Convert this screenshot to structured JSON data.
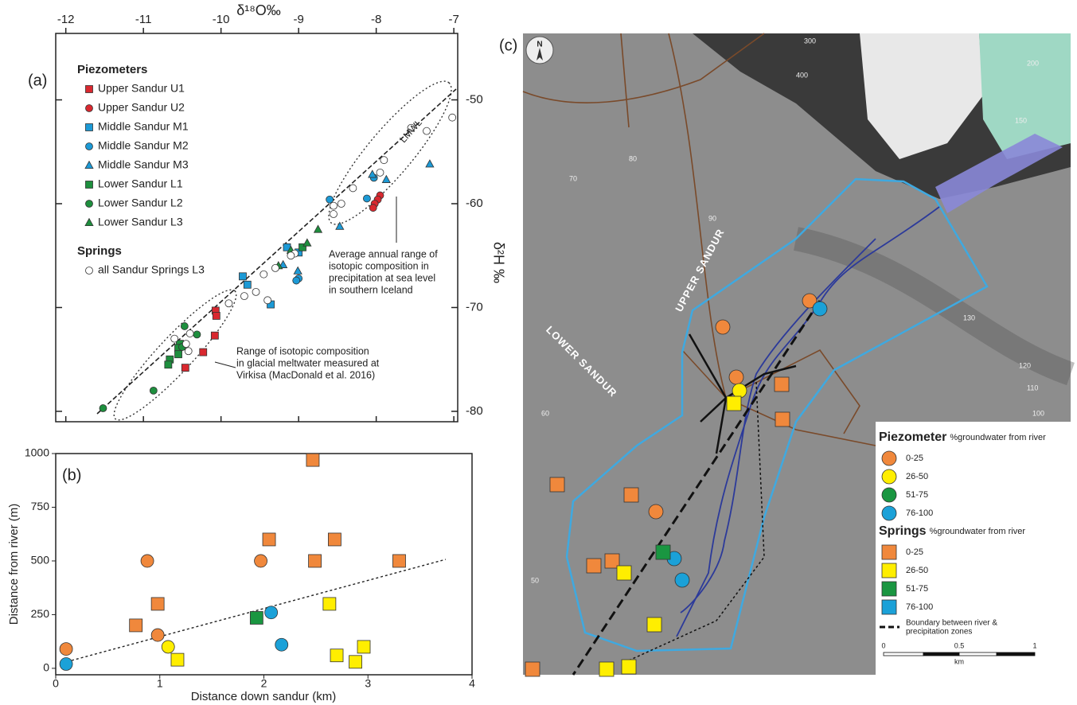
{
  "chart_data": [
    {
      "type": "scatter",
      "panel": "(a)",
      "xlabel": "δ¹⁸O‰",
      "ylabel": "δ²H ‰",
      "xlim": [
        -12.13,
        -6.95
      ],
      "ylim": [
        -81,
        -43.6
      ],
      "xticks": [
        -12,
        -11,
        -10,
        -9,
        -8,
        -7
      ],
      "yticks": [
        -50,
        -60,
        -70,
        -80
      ],
      "legend_groups": [
        "Piezometers",
        "Springs"
      ],
      "line_label": "LMWL",
      "annotations": [
        [
          "Average annual range of",
          "isotopic composition in",
          "precipitation at sea level",
          "in southern Iceland"
        ],
        [
          "Range of isotopic composition",
          "in glacial meltwater measured at",
          "Virkisa (MacDonald et al. 2016)"
        ]
      ],
      "series": [
        {
          "name": "Upper Sandur U1",
          "group": 0,
          "marker": "square",
          "color": "#d9282f",
          "x": [
            -10.07,
            -10.06,
            -10.08,
            -10.23,
            -10.46
          ],
          "y": [
            -70.3,
            -70.8,
            -72.7,
            -74.3,
            -75.8
          ]
        },
        {
          "name": "Upper Sandur U2",
          "group": 0,
          "marker": "circle",
          "color": "#d9282f",
          "x": [
            -7.95,
            -7.98,
            -8.02,
            -8.04
          ],
          "y": [
            -59.2,
            -59.6,
            -60.0,
            -60.4
          ]
        },
        {
          "name": "Middle Sandur M1",
          "group": 0,
          "marker": "square",
          "color": "#1c9ad6",
          "x": [
            -9.15,
            -9.0,
            -9.36,
            -9.66,
            -9.72
          ],
          "y": [
            -64.2,
            -64.7,
            -69.7,
            -67.8,
            -67.0
          ]
        },
        {
          "name": "Middle Sandur M2",
          "group": 0,
          "marker": "circle",
          "color": "#1c9ad6",
          "x": [
            -8.6,
            -8.12,
            -8.03,
            -9.0,
            -9.03
          ],
          "y": [
            -59.6,
            -59.5,
            -57.5,
            -67.2,
            -67.4
          ]
        },
        {
          "name": "Middle Sandur M3",
          "group": 0,
          "marker": "triangle",
          "color": "#1c9ad6",
          "x": [
            -7.31,
            -7.87,
            -8.47,
            -9.01,
            -9.2,
            -8.05
          ],
          "y": [
            -56.2,
            -57.7,
            -62.2,
            -66.5,
            -65.9,
            -57.2
          ]
        },
        {
          "name": "Lower Sandur L1",
          "group": 0,
          "marker": "square",
          "color": "#1e8f3e",
          "x": [
            -10.53,
            -10.55,
            -10.55,
            -10.66,
            -10.68,
            -8.95
          ],
          "y": [
            -73.5,
            -73.9,
            -74.5,
            -75.0,
            -75.5,
            -64.2
          ]
        },
        {
          "name": "Lower Sandur L2",
          "group": 0,
          "marker": "circle",
          "color": "#1e8f3e",
          "x": [
            -10.47,
            -10.31,
            -10.87,
            -11.52,
            -10.5
          ],
          "y": [
            -71.8,
            -72.6,
            -78.0,
            -79.7,
            -73.8
          ]
        },
        {
          "name": "Lower Sandur L3",
          "group": 0,
          "marker": "triangle",
          "color": "#1e8f3e",
          "x": [
            -8.75,
            -8.89,
            -9.26,
            -9.1
          ],
          "y": [
            -62.5,
            -63.8,
            -66.0,
            -64.5
          ]
        },
        {
          "name": "all Sandur Springs L3",
          "group": 1,
          "marker": "circle",
          "color": "#ffffff",
          "x": [
            -7.02,
            -7.35,
            -7.55,
            -7.9,
            -7.95,
            -8.3,
            -8.45,
            -8.55,
            -8.55,
            -9.05,
            -9.1,
            -9.3,
            -9.45,
            -9.55,
            -9.7,
            -9.9,
            -10.4,
            -10.45,
            -10.42,
            -10.6,
            -9.4
          ],
          "y": [
            -51.7,
            -53.0,
            -52.7,
            -55.8,
            -57.0,
            -58.5,
            -60.0,
            -60.2,
            -61.0,
            -64.8,
            -65.0,
            -66.2,
            -66.8,
            -68.5,
            -68.9,
            -69.6,
            -72.5,
            -73.5,
            -74.2,
            -73.0,
            -69.3
          ]
        }
      ]
    },
    {
      "type": "scatter",
      "panel": "(b)",
      "xlabel": "Distance down sandur (km)",
      "ylabel": "Distance from river (m)",
      "xlim": [
        0,
        4
      ],
      "ylim": [
        -30,
        1000
      ],
      "xticks": [
        0,
        1,
        2,
        3,
        4
      ],
      "yticks": [
        0,
        250,
        500,
        750,
        1000
      ],
      "series": [
        {
          "marker": "circle",
          "color": "#f0883c",
          "x": [
            0.1,
            0.88,
            0.98,
            1.97
          ],
          "y": [
            90,
            500,
            155,
            500
          ]
        },
        {
          "marker": "circle",
          "color": "#ffee00",
          "x": [
            1.08
          ],
          "y": [
            100
          ]
        },
        {
          "marker": "circle",
          "color": "#1ba1d8",
          "x": [
            0.1,
            2.07,
            2.17
          ],
          "y": [
            20,
            260,
            110
          ]
        },
        {
          "marker": "square",
          "color": "#f0883c",
          "x": [
            0.77,
            0.98,
            2.05,
            2.47,
            2.49,
            2.68,
            3.3
          ],
          "y": [
            200,
            300,
            600,
            970,
            500,
            600,
            500
          ]
        },
        {
          "marker": "square",
          "color": "#ffee00",
          "x": [
            1.17,
            2.63,
            2.7,
            2.88,
            2.96
          ],
          "y": [
            40,
            300,
            60,
            30,
            100
          ]
        },
        {
          "marker": "square",
          "color": "#1a9641",
          "x": [
            1.93
          ],
          "y": [
            235
          ]
        }
      ]
    }
  ],
  "map": {
    "panel": "(c)",
    "north": "N",
    "labels": [
      "UPPER SANDUR",
      "LOWER SANDUR"
    ],
    "contours": [
      "70",
      "80",
      "90",
      "60",
      "50",
      "130",
      "120",
      "110",
      "100",
      "150",
      "200",
      "300",
      "400"
    ],
    "legend": [
      {
        "title": "Piezometer",
        "subtitle": "%groundwater from river",
        "items": [
          {
            "label": "0-25",
            "color": "#f0883c"
          },
          {
            "label": "26-50",
            "color": "#ffee00"
          },
          {
            "label": "51-75",
            "color": "#1a9641"
          },
          {
            "label": "76-100",
            "color": "#1ba1d8"
          }
        ]
      },
      {
        "title": "Springs",
        "subtitle": "%groundwater from river",
        "items": [
          {
            "label": "0-25",
            "color": "#f0883c"
          },
          {
            "label": "26-50",
            "color": "#ffee00"
          },
          {
            "label": "51-75",
            "color": "#1a9641"
          },
          {
            "label": "76-100",
            "color": "#1ba1d8"
          }
        ]
      }
    ],
    "boundary": [
      "Boundary between river &",
      "precipitation zones"
    ],
    "scale": [
      "0",
      "0.5",
      "1",
      "km"
    ]
  }
}
